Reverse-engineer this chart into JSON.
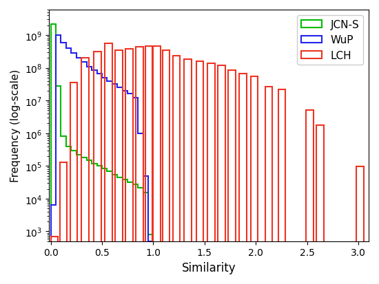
{
  "xlabel": "Similarity",
  "ylabel": "Frequency (log-scale)",
  "xlim": [
    -0.02,
    3.1
  ],
  "ylim": [
    500.0,
    6000000000.0
  ],
  "color_jcn": "#00bb00",
  "color_wup": "#2222ee",
  "color_lch": "#ee3322",
  "jcn_bins": [
    0.0,
    0.05,
    0.1,
    0.15,
    0.2,
    0.25,
    0.3,
    0.35,
    0.4,
    0.45,
    0.5,
    0.55,
    0.6,
    0.65,
    0.7,
    0.75,
    0.8,
    0.85,
    0.9,
    0.95,
    1.0
  ],
  "jcn_vals": [
    2200000000.0,
    28000000.0,
    800000.0,
    400000.0,
    300000.0,
    220000.0,
    180000.0,
    150000.0,
    120000.0,
    100000.0,
    85000.0,
    70000.0,
    55000.0,
    45000.0,
    38000.0,
    32000.0,
    27000.0,
    22000.0,
    15000.0,
    800.0
  ],
  "wup_bins": [
    0.0,
    0.05,
    0.1,
    0.15,
    0.2,
    0.25,
    0.3,
    0.35,
    0.4,
    0.45,
    0.5,
    0.55,
    0.6,
    0.65,
    0.7,
    0.75,
    0.8,
    0.85,
    0.9,
    0.95,
    1.0
  ],
  "wup_vals": [
    6500.0,
    1000000000.0,
    600000000.0,
    400000000.0,
    280000000.0,
    200000000.0,
    150000000.0,
    110000000.0,
    85000000.0,
    65000000.0,
    50000000.0,
    40000000.0,
    32000000.0,
    25000000.0,
    20000000.0,
    16000000.0,
    12000000.0,
    1000000.0,
    50000.0,
    500.0
  ],
  "lch_edges": [
    [
      0.0,
      0.07
    ],
    [
      0.09,
      0.16
    ],
    [
      0.19,
      0.26
    ],
    [
      0.3,
      0.37
    ],
    [
      0.42,
      0.49
    ],
    [
      0.53,
      0.6
    ],
    [
      0.63,
      0.7
    ],
    [
      0.73,
      0.8
    ],
    [
      0.83,
      0.9
    ],
    [
      0.92,
      0.99
    ],
    [
      1.0,
      1.07
    ],
    [
      1.09,
      1.16
    ],
    [
      1.19,
      1.26
    ],
    [
      1.3,
      1.37
    ],
    [
      1.42,
      1.49
    ],
    [
      1.53,
      1.6
    ],
    [
      1.63,
      1.7
    ],
    [
      1.73,
      1.8
    ],
    [
      1.84,
      1.91
    ],
    [
      1.95,
      2.02
    ],
    [
      2.09,
      2.16
    ],
    [
      2.22,
      2.29
    ],
    [
      2.49,
      2.56
    ],
    [
      2.59,
      2.66
    ],
    [
      2.98,
      3.05
    ]
  ],
  "lch_vals": [
    700,
    130000.0,
    35000000.0,
    200000000.0,
    320000000.0,
    550000000.0,
    350000000.0,
    380000000.0,
    450000000.0,
    470000000.0,
    470000000.0,
    340000000.0,
    230000000.0,
    180000000.0,
    160000000.0,
    140000000.0,
    120000000.0,
    85000000.0,
    65000000.0,
    55000000.0,
    27000000.0,
    22000000.0,
    5000000.0,
    1800000.0,
    95000.0
  ]
}
